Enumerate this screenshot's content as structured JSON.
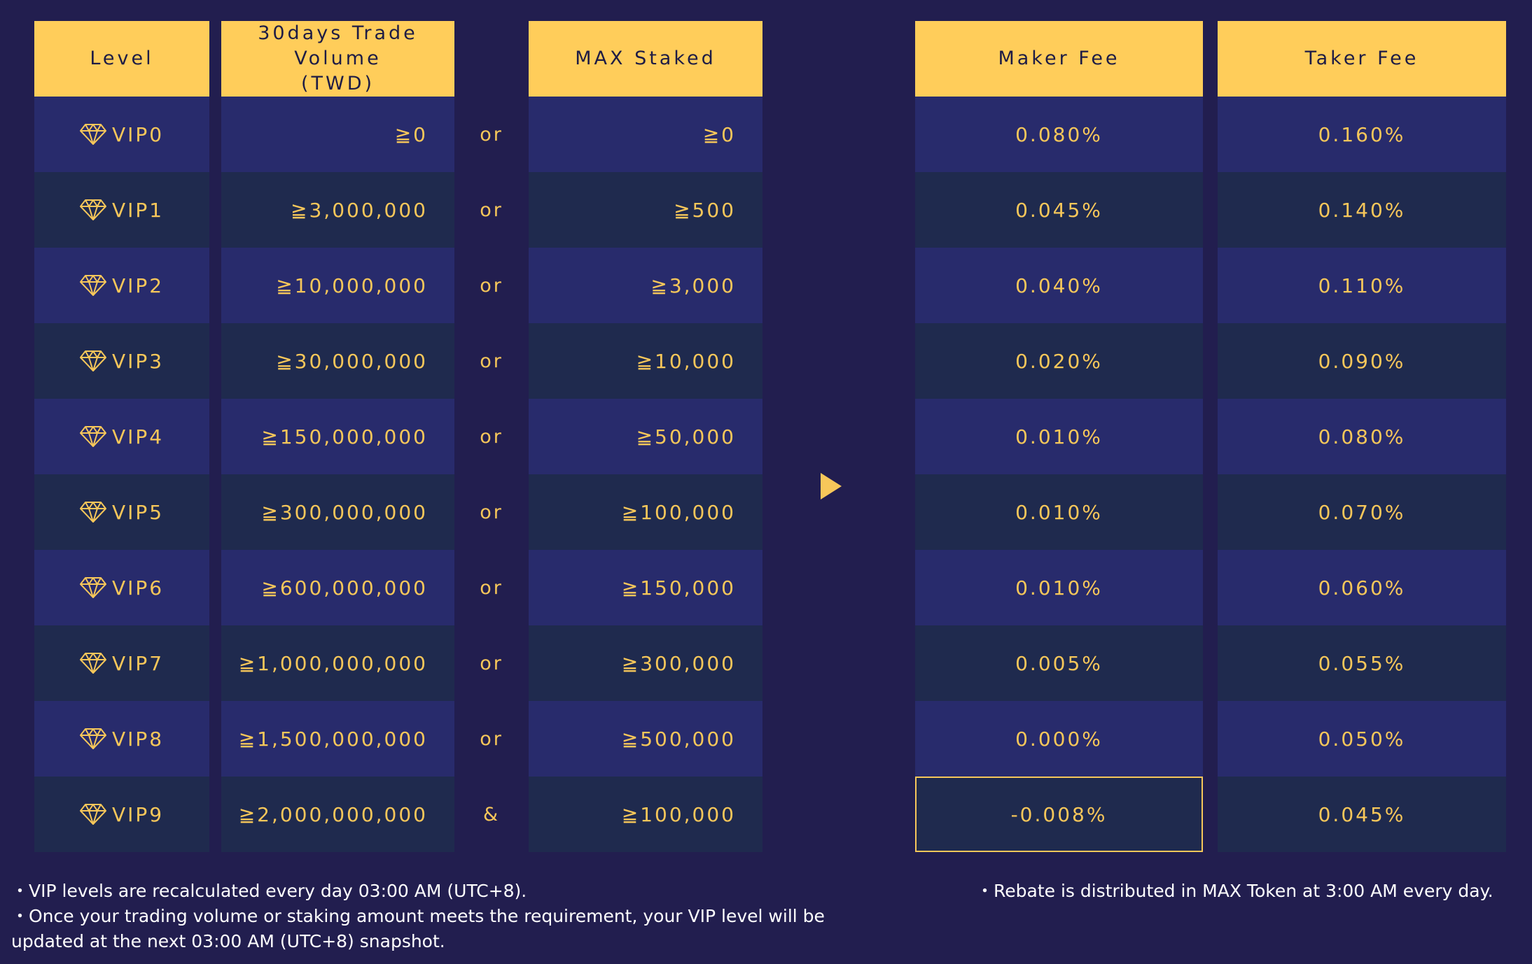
{
  "headers": {
    "level": "Level",
    "volume_line1": "30days Trade",
    "volume_line2": "Volume",
    "volume_line3": "(TWD)",
    "staked": "MAX Staked",
    "maker": "Maker Fee",
    "taker": "Taker Fee"
  },
  "rows": [
    {
      "level": "VIP0",
      "volume": "≧0",
      "conn": "or",
      "staked": "≧0",
      "maker": "0.080%",
      "taker": "0.160%"
    },
    {
      "level": "VIP1",
      "volume": "≧3,000,000",
      "conn": "or",
      "staked": "≧500",
      "maker": "0.045%",
      "taker": "0.140%"
    },
    {
      "level": "VIP2",
      "volume": "≧10,000,000",
      "conn": "or",
      "staked": "≧3,000",
      "maker": "0.040%",
      "taker": "0.110%"
    },
    {
      "level": "VIP3",
      "volume": "≧30,000,000",
      "conn": "or",
      "staked": "≧10,000",
      "maker": "0.020%",
      "taker": "0.090%"
    },
    {
      "level": "VIP4",
      "volume": "≧150,000,000",
      "conn": "or",
      "staked": "≧50,000",
      "maker": "0.010%",
      "taker": "0.080%"
    },
    {
      "level": "VIP5",
      "volume": "≧300,000,000",
      "conn": "or",
      "staked": "≧100,000",
      "maker": "0.010%",
      "taker": "0.070%"
    },
    {
      "level": "VIP6",
      "volume": "≧600,000,000",
      "conn": "or",
      "staked": "≧150,000",
      "maker": "0.010%",
      "taker": "0.060%"
    },
    {
      "level": "VIP7",
      "volume": "≧1,000,000,000",
      "conn": "or",
      "staked": "≧300,000",
      "maker": "0.005%",
      "taker": "0.055%"
    },
    {
      "level": "VIP8",
      "volume": "≧1,500,000,000",
      "conn": "or",
      "staked": "≧500,000",
      "maker": "0.000%",
      "taker": "0.050%"
    },
    {
      "level": "VIP9",
      "volume": "≧2,000,000,000",
      "conn": "&",
      "staked": "≧100,000",
      "maker": "-0.008%",
      "taker": "0.045%"
    }
  ],
  "notes": {
    "left1": "・VIP levels are recalculated every day 03:00 AM (UTC+8).",
    "left2": "・Once your trading volume or staking amount meets the requirement, your VIP level will be",
    "left3": "updated at the next 03:00 AM (UTC+8) snapshot.",
    "right1": "・Rebate is distributed in MAX Token at 3:00 AM every day."
  },
  "icons": {
    "level": "diamond-icon",
    "arrow": "play-arrow-icon"
  },
  "colors": {
    "background": "#221e4f",
    "header": "#ffcd5a",
    "row_odd": "#282b6c",
    "row_even": "#1f2a4e",
    "accent_text": "#f7c75a"
  }
}
